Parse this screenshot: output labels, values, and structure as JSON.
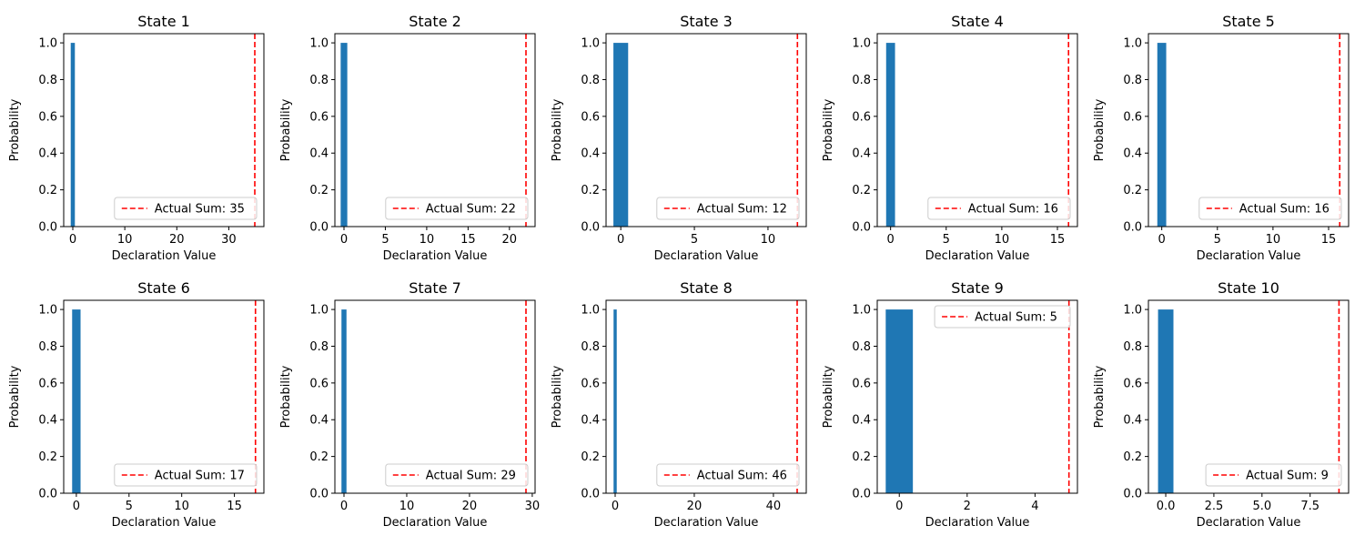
{
  "chart_data": [
    {
      "type": "bar",
      "title": "State 1",
      "xlabel": "Declaration Value",
      "ylabel": "Probability",
      "x": [
        0
      ],
      "values": [
        1.0
      ],
      "xlim": [
        -1.75,
        36.75
      ],
      "ylim": [
        0,
        1.05
      ],
      "xticks": [
        0,
        10,
        20,
        30
      ],
      "xtick_labels": [
        "0",
        "10",
        "20",
        "30"
      ],
      "yticks": [
        0,
        0.2,
        0.4,
        0.6,
        0.8,
        1.0
      ],
      "ytick_labels": [
        "0.0",
        "0.2",
        "0.4",
        "0.6",
        "0.8",
        "1.0"
      ],
      "bar_width": 0.8,
      "actual_sum": 35,
      "legend": {
        "label": "Actual Sum: 35",
        "loc": "lower-right"
      }
    },
    {
      "type": "bar",
      "title": "State 2",
      "xlabel": "Declaration Value",
      "ylabel": "Probability",
      "x": [
        0
      ],
      "values": [
        1.0
      ],
      "xlim": [
        -1.1,
        23.1
      ],
      "ylim": [
        0,
        1.05
      ],
      "xticks": [
        0,
        5,
        10,
        15,
        20
      ],
      "xtick_labels": [
        "0",
        "5",
        "10",
        "15",
        "20"
      ],
      "yticks": [
        0,
        0.2,
        0.4,
        0.6,
        0.8,
        1.0
      ],
      "ytick_labels": [
        "0.0",
        "0.2",
        "0.4",
        "0.6",
        "0.8",
        "1.0"
      ],
      "bar_width": 0.8,
      "actual_sum": 22,
      "legend": {
        "label": "Actual Sum: 22",
        "loc": "lower-right"
      }
    },
    {
      "type": "bar",
      "title": "State 3",
      "xlabel": "Declaration Value",
      "ylabel": "Probability",
      "x": [
        0
      ],
      "values": [
        1.0
      ],
      "xlim": [
        -1.0,
        12.6
      ],
      "ylim": [
        0,
        1.05
      ],
      "xticks": [
        0,
        5,
        10
      ],
      "xtick_labels": [
        "0",
        "5",
        "10"
      ],
      "yticks": [
        0,
        0.2,
        0.4,
        0.6,
        0.8,
        1.0
      ],
      "ytick_labels": [
        "0.0",
        "0.2",
        "0.4",
        "0.6",
        "0.8",
        "1.0"
      ],
      "bar_width": 1.0,
      "actual_sum": 12,
      "legend": {
        "label": "Actual Sum: 12",
        "loc": "lower-right"
      }
    },
    {
      "type": "bar",
      "title": "State 4",
      "xlabel": "Declaration Value",
      "ylabel": "Probability",
      "x": [
        0
      ],
      "values": [
        1.0
      ],
      "xlim": [
        -1.2,
        16.8
      ],
      "ylim": [
        0,
        1.05
      ],
      "xticks": [
        0,
        5,
        10,
        15
      ],
      "xtick_labels": [
        "0",
        "5",
        "10",
        "15"
      ],
      "yticks": [
        0,
        0.2,
        0.4,
        0.6,
        0.8,
        1.0
      ],
      "ytick_labels": [
        "0.0",
        "0.2",
        "0.4",
        "0.6",
        "0.8",
        "1.0"
      ],
      "bar_width": 0.8,
      "actual_sum": 16,
      "legend": {
        "label": "Actual Sum: 16",
        "loc": "lower-right"
      }
    },
    {
      "type": "bar",
      "title": "State 5",
      "xlabel": "Declaration Value",
      "ylabel": "Probability",
      "x": [
        0
      ],
      "values": [
        1.0
      ],
      "xlim": [
        -1.2,
        16.8
      ],
      "ylim": [
        0,
        1.05
      ],
      "xticks": [
        0,
        5,
        10,
        15
      ],
      "xtick_labels": [
        "0",
        "5",
        "10",
        "15"
      ],
      "yticks": [
        0,
        0.2,
        0.4,
        0.6,
        0.8,
        1.0
      ],
      "ytick_labels": [
        "0.0",
        "0.2",
        "0.4",
        "0.6",
        "0.8",
        "1.0"
      ],
      "bar_width": 0.8,
      "actual_sum": 16,
      "legend": {
        "label": "Actual Sum: 16",
        "loc": "lower-right"
      }
    },
    {
      "type": "bar",
      "title": "State 6",
      "xlabel": "Declaration Value",
      "ylabel": "Probability",
      "x": [
        0
      ],
      "values": [
        1.0
      ],
      "xlim": [
        -1.2,
        17.8
      ],
      "ylim": [
        0,
        1.05
      ],
      "xticks": [
        0,
        5,
        10,
        15
      ],
      "xtick_labels": [
        "0",
        "5",
        "10",
        "15"
      ],
      "yticks": [
        0,
        0.2,
        0.4,
        0.6,
        0.8,
        1.0
      ],
      "ytick_labels": [
        "0.0",
        "0.2",
        "0.4",
        "0.6",
        "0.8",
        "1.0"
      ],
      "bar_width": 0.8,
      "actual_sum": 17,
      "legend": {
        "label": "Actual Sum: 17",
        "loc": "lower-right"
      }
    },
    {
      "type": "bar",
      "title": "State 7",
      "xlabel": "Declaration Value",
      "ylabel": "Probability",
      "x": [
        0
      ],
      "values": [
        1.0
      ],
      "xlim": [
        -1.45,
        30.45
      ],
      "ylim": [
        0,
        1.05
      ],
      "xticks": [
        0,
        10,
        20,
        30
      ],
      "xtick_labels": [
        "0",
        "10",
        "20",
        "30"
      ],
      "yticks": [
        0,
        0.2,
        0.4,
        0.6,
        0.8,
        1.0
      ],
      "ytick_labels": [
        "0.0",
        "0.2",
        "0.4",
        "0.6",
        "0.8",
        "1.0"
      ],
      "bar_width": 0.8,
      "actual_sum": 29,
      "legend": {
        "label": "Actual Sum: 29",
        "loc": "lower-right"
      }
    },
    {
      "type": "bar",
      "title": "State 8",
      "xlabel": "Declaration Value",
      "ylabel": "Probability",
      "x": [
        0
      ],
      "values": [
        1.0
      ],
      "xlim": [
        -2.3,
        48.3
      ],
      "ylim": [
        0,
        1.05
      ],
      "xticks": [
        0,
        20,
        40
      ],
      "xtick_labels": [
        "0",
        "20",
        "40"
      ],
      "yticks": [
        0,
        0.2,
        0.4,
        0.6,
        0.8,
        1.0
      ],
      "ytick_labels": [
        "0.0",
        "0.2",
        "0.4",
        "0.6",
        "0.8",
        "1.0"
      ],
      "bar_width": 0.8,
      "actual_sum": 46,
      "legend": {
        "label": "Actual Sum: 46",
        "loc": "lower-right"
      }
    },
    {
      "type": "bar",
      "title": "State 9",
      "xlabel": "Declaration Value",
      "ylabel": "Probability",
      "x": [
        0
      ],
      "values": [
        1.0
      ],
      "xlim": [
        -0.65,
        5.25
      ],
      "ylim": [
        0,
        1.05
      ],
      "xticks": [
        0,
        2,
        4
      ],
      "xtick_labels": [
        "0",
        "2",
        "4"
      ],
      "yticks": [
        0,
        0.2,
        0.4,
        0.6,
        0.8,
        1.0
      ],
      "ytick_labels": [
        "0.0",
        "0.2",
        "0.4",
        "0.6",
        "0.8",
        "1.0"
      ],
      "bar_width": 0.8,
      "actual_sum": 5,
      "legend": {
        "label": "Actual Sum: 5",
        "loc": "upper-right"
      }
    },
    {
      "type": "bar",
      "title": "State 10",
      "xlabel": "Declaration Value",
      "ylabel": "Probability",
      "x": [
        0
      ],
      "values": [
        1.0
      ],
      "xlim": [
        -0.9,
        9.5
      ],
      "ylim": [
        0,
        1.05
      ],
      "xticks": [
        0,
        2.5,
        5,
        7.5
      ],
      "xtick_labels": [
        "0.0",
        "2.5",
        "5.0",
        "7.5"
      ],
      "yticks": [
        0,
        0.2,
        0.4,
        0.6,
        0.8,
        1.0
      ],
      "ytick_labels": [
        "0.0",
        "0.2",
        "0.4",
        "0.6",
        "0.8",
        "1.0"
      ],
      "bar_width": 0.8,
      "actual_sum": 9,
      "legend": {
        "label": "Actual Sum: 9",
        "loc": "lower-right"
      }
    }
  ],
  "colors": {
    "bar": "#1f77b4",
    "actual_sum_line": "#ff0000",
    "axes": "#000000",
    "legend_border": "#cccccc"
  }
}
